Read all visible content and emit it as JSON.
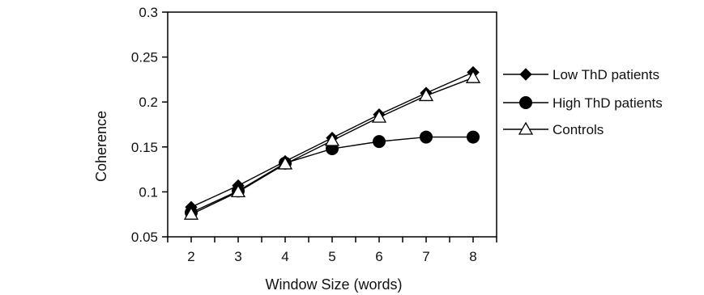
{
  "chart_data": {
    "type": "line",
    "title": "",
    "xlabel": "Window Size (words)",
    "ylabel": "Coherence",
    "x": [
      2,
      3,
      4,
      5,
      6,
      7,
      8
    ],
    "xlim": [
      1.5,
      8.5
    ],
    "ylim": [
      0.05,
      0.3
    ],
    "yticks": [
      "0.05",
      "0.1",
      "0.15",
      "0.2",
      "0.25",
      "0.3"
    ],
    "xticks": [
      "2",
      "3",
      "4",
      "5",
      "6",
      "7",
      "8"
    ],
    "grid": false,
    "legend_position": "right",
    "series": [
      {
        "name": "Low ThD patients",
        "marker": "diamond",
        "color": "#000000",
        "values": [
          0.083,
          0.107,
          0.134,
          0.16,
          0.186,
          0.21,
          0.233
        ]
      },
      {
        "name": "High ThD patients",
        "marker": "circle",
        "color": "#000000",
        "values": [
          0.077,
          0.101,
          0.132,
          0.148,
          0.156,
          0.161,
          0.161
        ]
      },
      {
        "name": "Controls",
        "marker": "triangle-open",
        "color": "#000000",
        "values": [
          0.075,
          0.1,
          0.131,
          0.157,
          0.183,
          0.207,
          0.227
        ]
      }
    ]
  }
}
